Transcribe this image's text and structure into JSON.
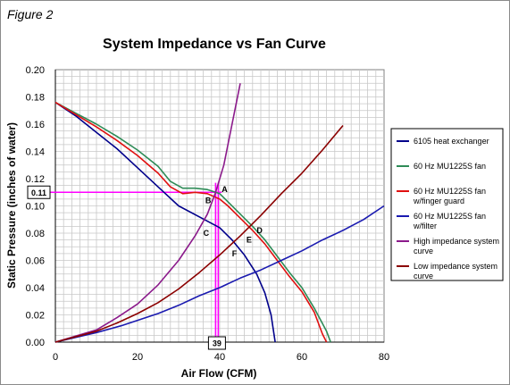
{
  "figure_label": "Figure 2",
  "chart_data": {
    "type": "line",
    "title": "System Impedance vs Fan Curve",
    "xlabel": "Air Flow (CFM)",
    "ylabel": "Static Pressure (inches of water)",
    "xlim": [
      0,
      80
    ],
    "ylim": [
      0,
      0.2
    ],
    "x_ticks": [
      "0",
      "20",
      "40",
      "60",
      "80"
    ],
    "y_ticks": [
      "0.00",
      "0.02",
      "0.04",
      "0.06",
      "0.08",
      "0.10",
      "0.12",
      "0.14",
      "0.16",
      "0.18",
      "0.20"
    ],
    "grid": true,
    "legend_position": "right",
    "series": [
      {
        "name": "6105 heat exchanger",
        "color": "#00008b",
        "points": [
          [
            0,
            0.176
          ],
          [
            5,
            0.166
          ],
          [
            10,
            0.154
          ],
          [
            15,
            0.142
          ],
          [
            20,
            0.128
          ],
          [
            25,
            0.114
          ],
          [
            30,
            0.1
          ],
          [
            35,
            0.092
          ],
          [
            40,
            0.084
          ],
          [
            43,
            0.075
          ],
          [
            46,
            0.064
          ],
          [
            49,
            0.05
          ],
          [
            51,
            0.036
          ],
          [
            52.5,
            0.02
          ],
          [
            53.5,
            0.0
          ]
        ]
      },
      {
        "name": "60 Hz MU1225S fan",
        "color": "#2e8b57",
        "points": [
          [
            0,
            0.176
          ],
          [
            5,
            0.168
          ],
          [
            10,
            0.16
          ],
          [
            15,
            0.151
          ],
          [
            20,
            0.141
          ],
          [
            25,
            0.129
          ],
          [
            28,
            0.118
          ],
          [
            31,
            0.113
          ],
          [
            34,
            0.113
          ],
          [
            37,
            0.112
          ],
          [
            40,
            0.109
          ],
          [
            42,
            0.103
          ],
          [
            45,
            0.094
          ],
          [
            48,
            0.085
          ],
          [
            51,
            0.075
          ],
          [
            54,
            0.063
          ],
          [
            57,
            0.051
          ],
          [
            60,
            0.04
          ],
          [
            63,
            0.025
          ],
          [
            66,
            0.008
          ],
          [
            67,
            0.0
          ]
        ]
      },
      {
        "name": "60 Hz MU1225S fan w/finger guard",
        "color": "#e01010",
        "points": [
          [
            0,
            0.176
          ],
          [
            5,
            0.167
          ],
          [
            10,
            0.158
          ],
          [
            15,
            0.148
          ],
          [
            20,
            0.137
          ],
          [
            25,
            0.124
          ],
          [
            28,
            0.114
          ],
          [
            31,
            0.109
          ],
          [
            34,
            0.11
          ],
          [
            37,
            0.109
          ],
          [
            40,
            0.105
          ],
          [
            42,
            0.1
          ],
          [
            45,
            0.091
          ],
          [
            48,
            0.082
          ],
          [
            51,
            0.072
          ],
          [
            54,
            0.06
          ],
          [
            57,
            0.048
          ],
          [
            60,
            0.037
          ],
          [
            63,
            0.022
          ],
          [
            65,
            0.006
          ],
          [
            66,
            0.0
          ]
        ]
      },
      {
        "name": "60 Hz MU1225S fan w/filter",
        "color": "#1a1ab0",
        "points": [
          [
            0,
            0.0
          ],
          [
            10,
            0.007
          ],
          [
            16,
            0.012
          ],
          [
            20,
            0.016
          ],
          [
            25,
            0.021
          ],
          [
            30,
            0.027
          ],
          [
            35,
            0.034
          ],
          [
            40,
            0.04
          ],
          [
            45,
            0.047
          ],
          [
            50,
            0.053
          ],
          [
            55,
            0.06
          ],
          [
            60,
            0.067
          ],
          [
            65,
            0.075
          ],
          [
            70,
            0.082
          ],
          [
            75,
            0.09
          ],
          [
            80,
            0.1
          ]
        ]
      },
      {
        "name": "High impedance system curve",
        "color": "#8b1a8b",
        "points": [
          [
            0,
            0.0
          ],
          [
            10,
            0.009
          ],
          [
            15,
            0.018
          ],
          [
            20,
            0.028
          ],
          [
            25,
            0.042
          ],
          [
            30,
            0.06
          ],
          [
            34,
            0.078
          ],
          [
            37,
            0.094
          ],
          [
            39,
            0.11
          ],
          [
            41,
            0.13
          ],
          [
            43,
            0.16
          ],
          [
            45,
            0.19
          ]
        ]
      },
      {
        "name": "Low impedance system curve",
        "color": "#8b0000",
        "points": [
          [
            0,
            0.0
          ],
          [
            10,
            0.008
          ],
          [
            15,
            0.014
          ],
          [
            20,
            0.021
          ],
          [
            25,
            0.029
          ],
          [
            30,
            0.039
          ],
          [
            35,
            0.051
          ],
          [
            40,
            0.064
          ],
          [
            45,
            0.078
          ],
          [
            50,
            0.093
          ],
          [
            55,
            0.109
          ],
          [
            60,
            0.124
          ],
          [
            65,
            0.141
          ],
          [
            70,
            0.159
          ]
        ]
      }
    ],
    "reference_lines": {
      "color": "#ff00ff",
      "y_value": 0.11,
      "y_label": "0.11",
      "x_value": 39,
      "x_label": "39"
    },
    "annotations": [
      {
        "label": "A",
        "x": 40.5,
        "y": 0.112
      },
      {
        "label": "B",
        "x": 36.5,
        "y": 0.104
      },
      {
        "label": "C",
        "x": 36,
        "y": 0.08
      },
      {
        "label": "D",
        "x": 49,
        "y": 0.082
      },
      {
        "label": "E",
        "x": 46.5,
        "y": 0.075
      },
      {
        "label": "F",
        "x": 43,
        "y": 0.065
      }
    ]
  }
}
